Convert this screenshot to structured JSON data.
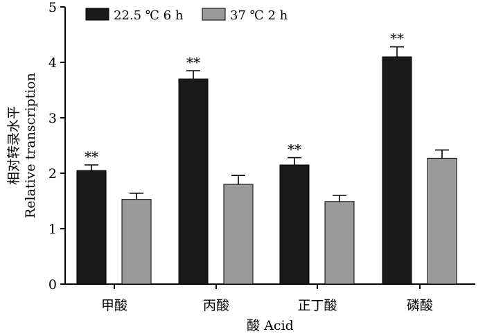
{
  "chart_data": {
    "type": "bar",
    "categories": [
      "甲酸",
      "丙酸",
      "正丁酸",
      "磷酸"
    ],
    "series": [
      {
        "name": "22.5 ℃ 6 h",
        "color": "#1a1a1a",
        "values": [
          2.05,
          3.7,
          2.15,
          4.1
        ],
        "errors": [
          0.1,
          0.15,
          0.13,
          0.18
        ],
        "significance": [
          "**",
          "**",
          "**",
          "**"
        ]
      },
      {
        "name": "37 ℃ 2 h",
        "color": "#9a9a9a",
        "values": [
          1.53,
          1.8,
          1.49,
          2.27
        ],
        "errors": [
          0.11,
          0.16,
          0.11,
          0.15
        ],
        "significance": [
          "",
          "",
          "",
          ""
        ]
      }
    ],
    "xlabel": "酸 Acid",
    "ylabel_cn": "相对转录水平",
    "ylabel_en": "Relative transcription",
    "ylim": [
      0,
      5
    ],
    "yticks": [
      "0",
      "1",
      "2",
      "3",
      "4",
      "5"
    ],
    "legend_position": "top-left",
    "grid": false
  }
}
